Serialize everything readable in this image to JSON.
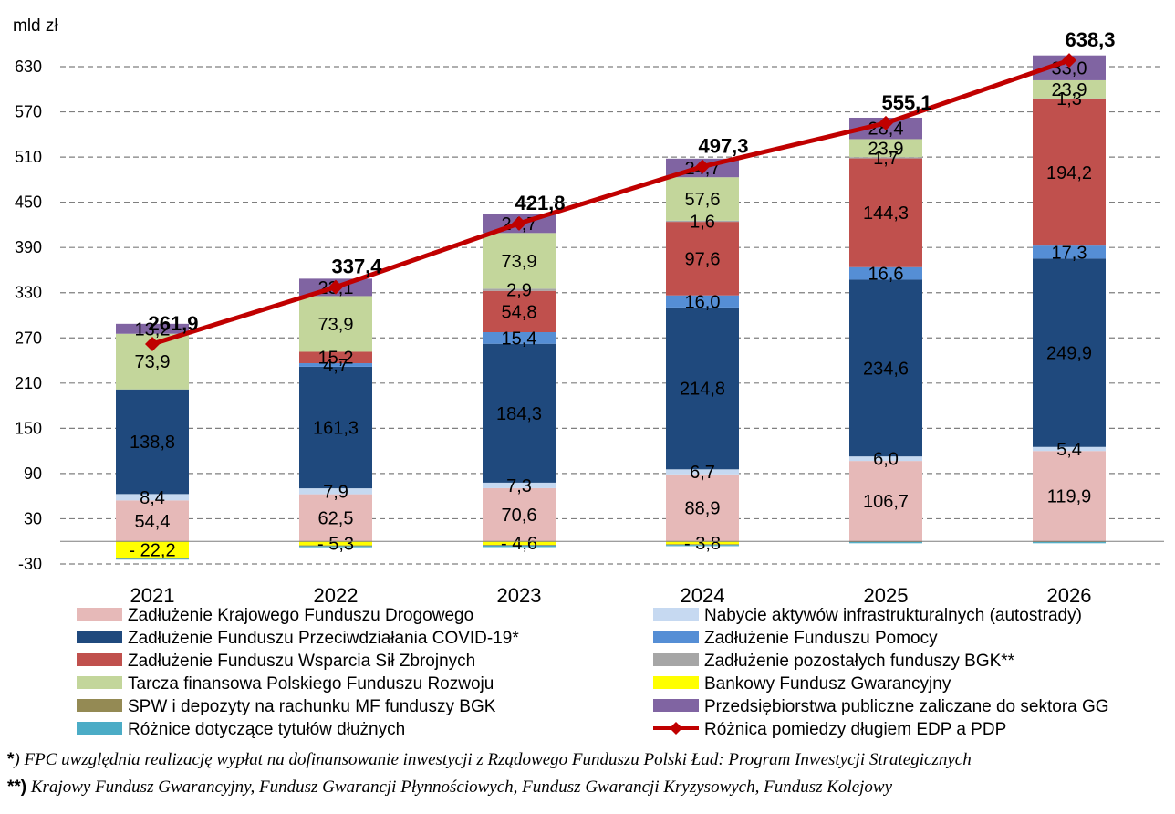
{
  "chart_data": {
    "type": "bar",
    "stacked": true,
    "ylabel": "mld zł",
    "ylim": [
      -30,
      660
    ],
    "yticks": [
      -30,
      30,
      90,
      150,
      210,
      270,
      330,
      390,
      450,
      510,
      570,
      630
    ],
    "categories": [
      "2021",
      "2022",
      "2023",
      "2024",
      "2025",
      "2026"
    ],
    "series": [
      {
        "key": "kfd",
        "name": "Zadłużenie Krajowego Funduszu Drogowego",
        "color": "#e6b9b8",
        "values": [
          54.4,
          62.5,
          70.6,
          88.9,
          106.7,
          119.9
        ],
        "labels": [
          "54,4",
          "62,5",
          "70,6",
          "88,9",
          "106,7",
          "119,9"
        ]
      },
      {
        "key": "nabycie",
        "name": "Nabycie aktywów infrastrukturalnych (autostrady)",
        "color": "#c6d9f1",
        "values": [
          8.4,
          7.9,
          7.3,
          6.7,
          6.0,
          5.4
        ],
        "labels": [
          "8,4",
          "7,9",
          "7,3",
          "6,7",
          "6,0",
          "5,4"
        ]
      },
      {
        "key": "covid",
        "name": "Zadłużenie Funduszu Przeciwdziałania COVID-19*",
        "color": "#1f497d",
        "values": [
          138.8,
          161.3,
          184.3,
          214.8,
          234.6,
          249.9
        ],
        "labels": [
          "138,8",
          "161,3",
          "184,3",
          "214,8",
          "234,6",
          "249,9"
        ]
      },
      {
        "key": "pomocy",
        "name": "Zadłużenie Funduszu Pomocy",
        "color": "#558ed5",
        "values": [
          0,
          4.7,
          15.4,
          16.0,
          16.6,
          17.3
        ],
        "labels": [
          "",
          "4,7",
          "15,4",
          "16,0",
          "16,6",
          "17,3"
        ]
      },
      {
        "key": "fwsz",
        "name": "Zadłużenie Funduszu Wsparcia Sił Zbrojnych",
        "color": "#c0504d",
        "values": [
          0,
          15.2,
          54.8,
          97.6,
          144.3,
          194.2
        ],
        "labels": [
          "",
          "15,2",
          "54,8",
          "97,6",
          "144,3",
          "194,2"
        ]
      },
      {
        "key": "pozostale",
        "name": "Zadłużenie pozostałych funduszy BGK**",
        "color": "#a6a6a6",
        "values": [
          0,
          0,
          2.9,
          1.6,
          1.7,
          1.3
        ],
        "labels": [
          "",
          "",
          "2,9",
          "1,6",
          "1,7",
          "1,3"
        ]
      },
      {
        "key": "tarcza",
        "name": "Tarcza finansowa Polskiego Funduszu Rozwoju",
        "color": "#c3d69b",
        "values": [
          73.9,
          73.9,
          73.9,
          57.6,
          23.9,
          23.9
        ],
        "labels": [
          "73,9",
          "73,9",
          "73,9",
          "57,6",
          "23,9",
          "23,9"
        ]
      },
      {
        "key": "bfg",
        "name": "Bankowy Fundusz Gwarancyjny",
        "color": "#ffff00",
        "values": [
          -22.2,
          -5.3,
          -4.6,
          -3.8,
          0,
          0
        ],
        "labels": [
          "- 22,2",
          "- 5,3",
          "- 4,6",
          "- 3,8",
          "",
          ""
        ]
      },
      {
        "key": "spw",
        "name": "SPW i depozyty na rachunku MF funduszy BGK",
        "color": "#948a54",
        "values": [
          -1.0,
          -1.0,
          -1.0,
          -1.0,
          -1.0,
          -1.0
        ],
        "labels": [
          "",
          "",
          "",
          "",
          "",
          ""
        ]
      },
      {
        "key": "przeds",
        "name": "Przedsiębiorstwa publiczne zaliczane do sektora GG",
        "color": "#8064a2",
        "values": [
          13.2,
          23.1,
          24.7,
          24.7,
          28.4,
          33.0
        ],
        "labels": [
          "13,2",
          "23,1",
          "24,7",
          "24,7",
          "28,4",
          "33,0"
        ]
      },
      {
        "key": "roznice",
        "name": "Różnice dotyczące tytułów dłużnych",
        "color": "#4bacc6",
        "values": [
          -1.0,
          -1.5,
          -2.0,
          -1.5,
          -1.5,
          -1.5
        ],
        "labels": [
          "",
          "",
          "",
          "",
          "",
          ""
        ]
      }
    ],
    "line": {
      "name": "Różnica pomiedzy długiem EDP a PDP",
      "color": "#c00000",
      "values": [
        261.9,
        337.4,
        421.8,
        497.3,
        555.1,
        638.3
      ],
      "labels": [
        "261,9",
        "337,4",
        "421,8",
        "497,3",
        "555,1",
        "638,3"
      ]
    },
    "legend_layout": [
      [
        "kfd",
        "nabycie"
      ],
      [
        "covid",
        "pomocy"
      ],
      [
        "fwsz",
        "pozostale"
      ],
      [
        "tarcza",
        "bfg"
      ],
      [
        "spw",
        "przeds"
      ],
      [
        "roznice",
        "line"
      ]
    ]
  },
  "footnotes": {
    "note1_mark": "*",
    "note1_text": ") FPC uwzględnia realizację wypłat na dofinansowanie inwestycji z Rządowego Funduszu Polski Ład: Program Inwestycji Strategicznych",
    "note2_mark": "**)",
    "note2_text": " Krajowy Fundusz Gwarancyjny, Fundusz Gwarancji Płynnościowych, Fundusz Gwarancji Kryzysowych, Fundusz Kolejowy"
  }
}
